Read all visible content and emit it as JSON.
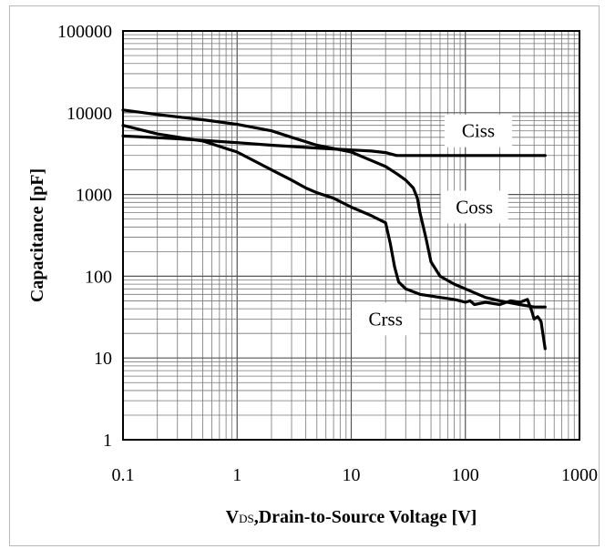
{
  "chart_data": {
    "type": "line",
    "xscale": "log",
    "yscale": "log",
    "xlim": [
      0.1,
      1000
    ],
    "ylim": [
      1,
      100000
    ],
    "grid": true,
    "xlabel": "VDS,Drain-to-Source Voltage [V]",
    "xlabel_sub": "DS",
    "xlabel_prefix": "V",
    "xlabel_rest": ",Drain-to-Source Voltage [V]",
    "ylabel": "Capacitance [pF]",
    "x_ticks": [
      "0.1",
      "1",
      "10",
      "100",
      "1000"
    ],
    "y_ticks": [
      "1",
      "10",
      "100",
      "1000",
      "10000",
      "100000"
    ],
    "series": [
      {
        "name": "Ciss",
        "points": [
          [
            0.1,
            5200
          ],
          [
            0.3,
            4800
          ],
          [
            0.5,
            4600
          ],
          [
            1,
            4300
          ],
          [
            2,
            4000
          ],
          [
            5,
            3700
          ],
          [
            10,
            3500
          ],
          [
            15,
            3400
          ],
          [
            20,
            3250
          ],
          [
            25,
            3000
          ],
          [
            30,
            3000
          ],
          [
            50,
            3000
          ],
          [
            100,
            3000
          ],
          [
            200,
            3000
          ],
          [
            500,
            3000
          ]
        ]
      },
      {
        "name": "Coss",
        "points": [
          [
            0.1,
            10800
          ],
          [
            0.2,
            9500
          ],
          [
            0.5,
            8200
          ],
          [
            1,
            7200
          ],
          [
            2,
            6000
          ],
          [
            3,
            5000
          ],
          [
            5,
            4000
          ],
          [
            10,
            3300
          ],
          [
            15,
            2600
          ],
          [
            20,
            2200
          ],
          [
            25,
            1800
          ],
          [
            30,
            1500
          ],
          [
            35,
            1200
          ],
          [
            38,
            900
          ],
          [
            40,
            600
          ],
          [
            45,
            300
          ],
          [
            50,
            150
          ],
          [
            60,
            100
          ],
          [
            80,
            80
          ],
          [
            100,
            70
          ],
          [
            150,
            55
          ],
          [
            200,
            50
          ],
          [
            300,
            45
          ],
          [
            400,
            42
          ],
          [
            500,
            42
          ]
        ]
      },
      {
        "name": "Crss",
        "points": [
          [
            0.1,
            7000
          ],
          [
            0.2,
            5500
          ],
          [
            0.5,
            4500
          ],
          [
            1,
            3300
          ],
          [
            2,
            2000
          ],
          [
            3,
            1500
          ],
          [
            4,
            1200
          ],
          [
            5,
            1050
          ],
          [
            7,
            900
          ],
          [
            10,
            700
          ],
          [
            15,
            550
          ],
          [
            20,
            450
          ],
          [
            22,
            250
          ],
          [
            24,
            130
          ],
          [
            26,
            85
          ],
          [
            30,
            70
          ],
          [
            40,
            60
          ],
          [
            60,
            55
          ],
          [
            80,
            52
          ],
          [
            90,
            50
          ],
          [
            100,
            48
          ],
          [
            110,
            50
          ],
          [
            120,
            45
          ],
          [
            150,
            48
          ],
          [
            200,
            45
          ],
          [
            250,
            50
          ],
          [
            300,
            48
          ],
          [
            350,
            52
          ],
          [
            380,
            38
          ],
          [
            400,
            30
          ],
          [
            430,
            32
          ],
          [
            460,
            28
          ],
          [
            500,
            13
          ]
        ]
      }
    ],
    "labels": [
      {
        "series": "Ciss",
        "text": "Ciss",
        "x": 130,
        "y": 6000
      },
      {
        "series": "Coss",
        "text": "Coss",
        "x": 120,
        "y": 700
      },
      {
        "series": "Crss",
        "text": "Crss",
        "x": 20,
        "y": 30
      }
    ]
  }
}
